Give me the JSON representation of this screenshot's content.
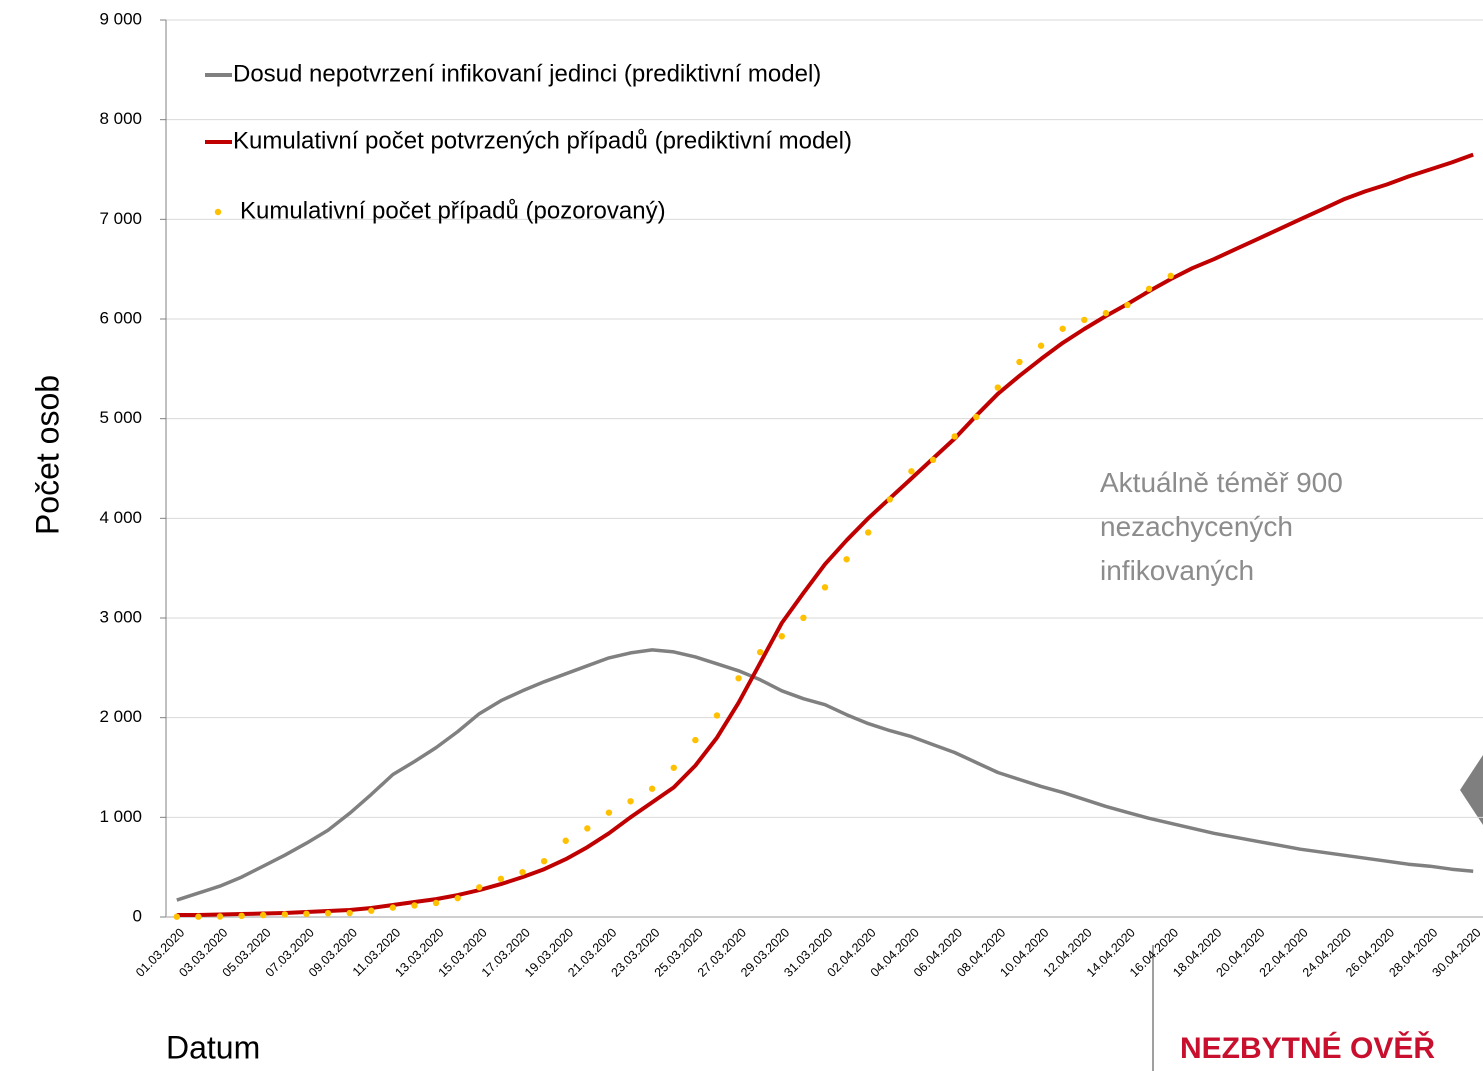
{
  "chart_data": {
    "type": "line",
    "ylabel": "Počet osob",
    "xlabel": "Datum",
    "annotation": "Aktuálně téměř 900 nezachycených infikovaných",
    "footer": "NEZBYTNÉ OVĚŘ",
    "categories": [
      "01.03.2020",
      null,
      "03.03.2020",
      null,
      "05.03.2020",
      null,
      "07.03.2020",
      null,
      "09.03.2020",
      null,
      "11.03.2020",
      null,
      "13.03.2020",
      null,
      "15.03.2020",
      null,
      "17.03.2020",
      null,
      "19.03.2020",
      null,
      "21.03.2020",
      null,
      "23.03.2020",
      null,
      "25.03.2020",
      null,
      "27.03.2020",
      null,
      "29.03.2020",
      null,
      "31.03.2020",
      null,
      "02.04.2020",
      null,
      "04.04.2020",
      null,
      "06.04.2020",
      null,
      "08.04.2020",
      null,
      "10.04.2020",
      null,
      "12.04.2020",
      null,
      "14.04.2020",
      null,
      "16.04.2020",
      null,
      "18.04.2020",
      null,
      "20.04.2020",
      null,
      "22.04.2020",
      null,
      "24.04.2020",
      null,
      "26.04.2020",
      null,
      "28.04.2020",
      null,
      "30.04.2020"
    ],
    "series": [
      {
        "name": "Dosud nepotvrzení infikovaní jedinci (prediktivní model)",
        "color": "#808080",
        "style": "line",
        "values": [
          170,
          240,
          310,
          400,
          510,
          620,
          740,
          870,
          1040,
          1230,
          1430,
          1560,
          1700,
          1860,
          2040,
          2170,
          2270,
          2360,
          2440,
          2520,
          2600,
          2650,
          2680,
          2660,
          2610,
          2540,
          2470,
          2380,
          2270,
          2190,
          2130,
          2030,
          1940,
          1870,
          1810,
          1730,
          1650,
          1550,
          1450,
          1380,
          1310,
          1250,
          1180,
          1110,
          1050,
          990,
          940,
          890,
          840,
          800,
          760,
          720,
          680,
          650,
          620,
          590,
          560,
          530,
          510,
          480,
          460
        ]
      },
      {
        "name": "Kumulativní počet potvrzených případů (prediktivní model)",
        "color": "#c00000",
        "style": "line",
        "values": [
          20,
          20,
          25,
          30,
          35,
          40,
          50,
          60,
          70,
          90,
          120,
          150,
          180,
          220,
          270,
          330,
          400,
          480,
          580,
          700,
          840,
          1000,
          1150,
          1300,
          1520,
          1800,
          2150,
          2550,
          2950,
          3250,
          3540,
          3780,
          4000,
          4200,
          4400,
          4600,
          4800,
          5030,
          5250,
          5430,
          5600,
          5760,
          5900,
          6030,
          6150,
          6280,
          6400,
          6510,
          6600,
          6700,
          6800,
          6900,
          7000,
          7100,
          7200,
          7280,
          7350,
          7430,
          7500,
          7570,
          7650
        ]
      },
      {
        "name": "Kumulativní počet případů (pozorovaný)",
        "color": "#ffc000",
        "style": "dots",
        "values": [
          3,
          3,
          5,
          12,
          19,
          26,
          32,
          38,
          40,
          63,
          94,
          116,
          141,
          189,
          298,
          383,
          450,
          560,
          765,
          889,
          1047,
          1161,
          1287,
          1497,
          1775,
          2022,
          2395,
          2657,
          2817,
          3002,
          3308,
          3589,
          3858,
          4190,
          4472,
          4587,
          4822,
          5017,
          5312,
          5569,
          5732,
          5902,
          5991,
          6059,
          6141,
          6303,
          6433,
          null,
          null,
          null,
          null,
          null,
          null,
          null,
          null,
          null,
          null,
          null,
          null,
          null,
          null
        ]
      }
    ],
    "ylim": [
      0,
      9000
    ],
    "yticks": [
      0,
      {
        "value": 1000,
        "label": "1 000"
      },
      {
        "value": 2000,
        "label": "2 000"
      },
      {
        "value": 3000,
        "label": "3 000"
      },
      {
        "value": 4000,
        "label": "4 000"
      },
      {
        "value": 5000,
        "label": "5 000"
      },
      {
        "value": 6000,
        "label": "6 000"
      },
      {
        "value": 7000,
        "label": "7 000"
      },
      {
        "value": 8000,
        "label": "8 000"
      },
      {
        "value": 9000,
        "label": "9 000"
      }
    ],
    "grid": true
  }
}
